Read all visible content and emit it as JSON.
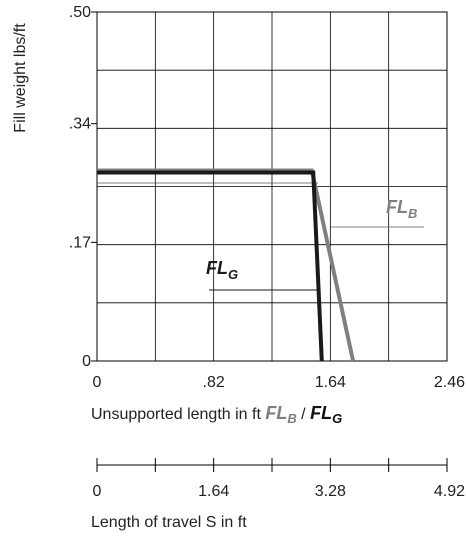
{
  "chart_data": {
    "type": "line",
    "ylabel": "Fill weight lbs/ft",
    "xlabel_prefix": "Unsupported length in ft",
    "xlabel_series": [
      "FL",
      "B",
      "FL",
      "G"
    ],
    "x2label": "Length of travel S in ft",
    "x_ticks": [
      "0",
      ".82",
      "1.64",
      "2.46"
    ],
    "y_ticks": [
      "0",
      ".17",
      ".34",
      ".50"
    ],
    "x2_ticks": [
      "0",
      "1.64",
      "3.28",
      "4.92"
    ],
    "xlim": [
      0,
      2.46
    ],
    "ylim": [
      0,
      0.5
    ],
    "x2lim": [
      0,
      4.92
    ],
    "grid": true,
    "colors": {
      "FL_B": "#808080",
      "FL_G": "#1a1a1a",
      "grid": "#000000"
    },
    "series": [
      {
        "name": "FL_B",
        "label_main": "FL",
        "label_sub": "B",
        "x": [
          0,
          1.51,
          1.8
        ],
        "y": [
          0.273,
          0.273,
          0
        ]
      },
      {
        "name": "FL_G",
        "label_main": "FL",
        "label_sub": "G",
        "x": [
          0,
          1.52,
          1.58
        ],
        "y": [
          0.27,
          0.27,
          0
        ]
      }
    ]
  }
}
